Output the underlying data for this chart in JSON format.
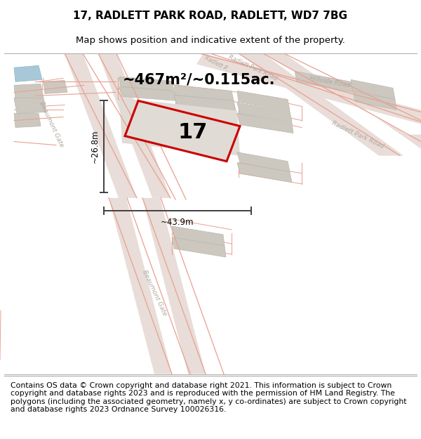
{
  "title_line1": "17, RADLETT PARK ROAD, RADLETT, WD7 7BG",
  "title_line2": "Map shows position and indicative extent of the property.",
  "footer_text": "Contains OS data © Crown copyright and database right 2021. This information is subject to Crown copyright and database rights 2023 and is reproduced with the permission of HM Land Registry. The polygons (including the associated geometry, namely x, y co-ordinates) are subject to Crown copyright and database rights 2023 Ordnance Survey 100026316.",
  "area_label": "~467m²/~0.115ac.",
  "width_label": "~43.9m",
  "height_label": "~26.8m",
  "property_number": "17",
  "map_bg": "#f2eeea",
  "road_fill": "#e8ddd8",
  "road_edge": "#e8a090",
  "building_color": "#ccc8c0",
  "building_edge": "#bbb8b0",
  "prop_fill": "#e0dbd5",
  "prop_edge": "#cc0000",
  "dim_color": "#404040",
  "road_label_color": "#b0a8a0",
  "water_color": "#a8c8d8",
  "title_fontsize": 11,
  "subtitle_fontsize": 9.5,
  "footer_fontsize": 7.8,
  "area_fontsize": 15,
  "number_fontsize": 22
}
